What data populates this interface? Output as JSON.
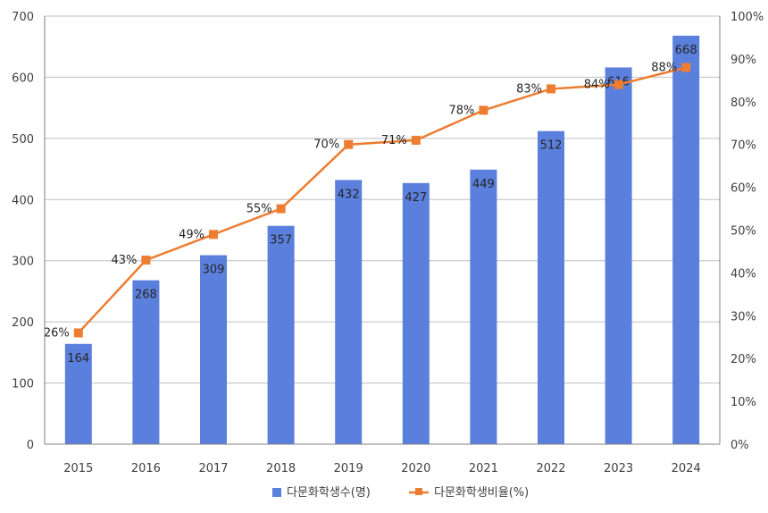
{
  "chart_data": {
    "type": "bar",
    "categories": [
      "2015",
      "2016",
      "2017",
      "2018",
      "2019",
      "2020",
      "2021",
      "2022",
      "2023",
      "2024"
    ],
    "series": [
      {
        "name": "다문화학생수(명)",
        "type": "bar",
        "axis": "left",
        "values": [
          164,
          268,
          309,
          357,
          432,
          427,
          449,
          512,
          616,
          668
        ],
        "labels": [
          "164",
          "268",
          "309",
          "357",
          "432",
          "427",
          "449",
          "512",
          "616",
          "668"
        ],
        "color": "#5b7fdc"
      },
      {
        "name": "다문화학생비율(%)",
        "type": "line",
        "axis": "right",
        "values": [
          26,
          43,
          49,
          55,
          70,
          71,
          78,
          83,
          84,
          88
        ],
        "labels": [
          "26%",
          "43%",
          "49%",
          "55%",
          "70%",
          "71%",
          "78%",
          "83%",
          "84%",
          "88%"
        ],
        "color": "#ed7d31"
      }
    ],
    "title": "",
    "xlabel": "",
    "ylabel": "",
    "ylim": [
      0,
      700
    ],
    "y2lim": [
      0,
      100
    ],
    "y_ticks": [
      "0",
      "100",
      "200",
      "300",
      "400",
      "500",
      "600",
      "700"
    ],
    "y2_ticks": [
      "0%",
      "10%",
      "20%",
      "30%",
      "40%",
      "50%",
      "60%",
      "70%",
      "80%",
      "90%",
      "100%"
    ],
    "grid": true,
    "legend": "bottom"
  }
}
